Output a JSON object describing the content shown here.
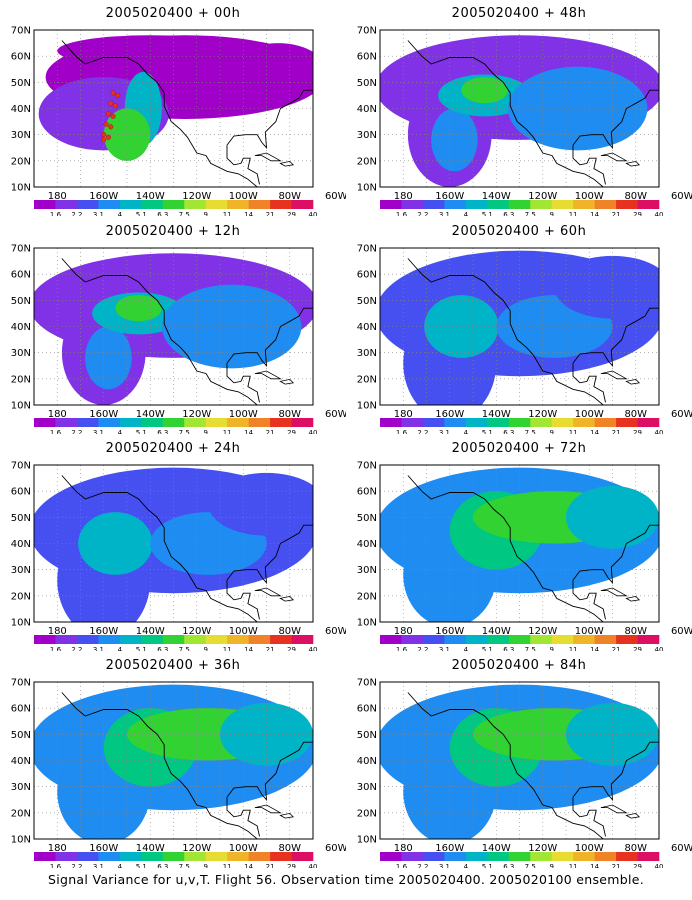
{
  "caption": "Signal Variance for u,v,T. Flight 56. Observation time 2005020400. 2005020100 ensemble.",
  "lat_labels": [
    "70N",
    "60N",
    "50N",
    "40N",
    "30N",
    "20N",
    "10N"
  ],
  "lon_labels": [
    "180",
    "160W",
    "140W",
    "120W",
    "100W",
    "80W",
    "60W"
  ],
  "colorbar": {
    "colors": [
      "#a000c8",
      "#8232e6",
      "#4650f0",
      "#1e8cf0",
      "#00b4c8",
      "#00c882",
      "#32d232",
      "#a0e632",
      "#e6dc32",
      "#f0b428",
      "#f08228",
      "#e6321e",
      "#dc0f64"
    ],
    "labels": [
      "1.6",
      "2.2",
      "3.1",
      "4",
      "5.1",
      "6.3",
      "7.5",
      "9",
      "11",
      "14",
      "21",
      "29",
      "40"
    ]
  },
  "panels": [
    {
      "title": "2005020400 + 00h"
    },
    {
      "title": "2005020400 + 48h"
    },
    {
      "title": "2005020400 + 12h"
    },
    {
      "title": "2005020400 + 60h"
    },
    {
      "title": "2005020400 + 24h"
    },
    {
      "title": "2005020400 + 72h"
    },
    {
      "title": "2005020400 + 36h"
    },
    {
      "title": "2005020400 + 84h"
    }
  ]
}
